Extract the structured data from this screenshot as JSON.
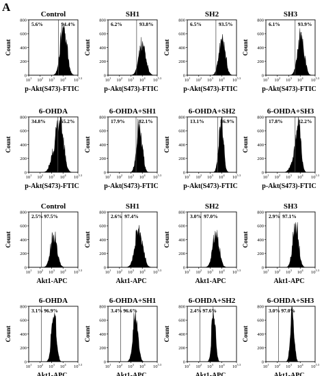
{
  "figure": {
    "panel_label": "A"
  },
  "chart_data": [
    {
      "type": "histogram",
      "title": "Control",
      "xlabel": "p-Akt(S473)-FTIC",
      "ylabel": "Count",
      "yticks": [
        "0",
        "200",
        "400",
        "600",
        "800"
      ],
      "ylim": [
        0,
        800
      ],
      "xticks": [
        "10^1",
        "10^2",
        "10^3",
        "10^4",
        "10^5.3"
      ],
      "xlim_log10": [
        1,
        5.3
      ],
      "gate_log10": 3.6,
      "left_pct": "5.6%",
      "right_pct": "94.4%",
      "distribution": {
        "peak_log10": 4.05,
        "spread": 0.28,
        "peak_count": 660
      }
    },
    {
      "type": "histogram",
      "title": "SH1",
      "xlabel": "p-Akt(S473)-FTIC",
      "ylabel": "Count",
      "yticks": [
        "0",
        "200",
        "400",
        "600",
        "800"
      ],
      "ylim": [
        0,
        800
      ],
      "xticks": [
        "10^1",
        "10^2",
        "10^3",
        "10^4",
        "10^5.3"
      ],
      "xlim_log10": [
        1,
        5.3
      ],
      "gate_log10": 3.5,
      "left_pct": "6.2%",
      "right_pct": "93.8%",
      "distribution": {
        "peak_log10": 4.0,
        "spread": 0.3,
        "peak_count": 420
      }
    },
    {
      "type": "histogram",
      "title": "SH2",
      "xlabel": "p-Akt(S473)-FTIC",
      "ylabel": "Count",
      "yticks": [
        "0",
        "200",
        "400",
        "600",
        "800"
      ],
      "ylim": [
        0,
        800
      ],
      "xticks": [
        "10^1",
        "10^2",
        "10^3",
        "10^4",
        "10^5.3"
      ],
      "xlim_log10": [
        1,
        5.3
      ],
      "gate_log10": 3.5,
      "left_pct": "6.5%",
      "right_pct": "93.5%",
      "distribution": {
        "peak_log10": 4.05,
        "spread": 0.27,
        "peak_count": 520
      }
    },
    {
      "type": "histogram",
      "title": "SH3",
      "xlabel": "p-Akt(S473)-FTIC",
      "ylabel": "Count",
      "yticks": [
        "0",
        "200",
        "400",
        "600",
        "800"
      ],
      "ylim": [
        0,
        800
      ],
      "xticks": [
        "10^1",
        "10^2",
        "10^3",
        "10^4",
        "10^5.3"
      ],
      "xlim_log10": [
        1,
        5.3
      ],
      "gate_log10": 3.55,
      "left_pct": "6.1%",
      "right_pct": "93.9%",
      "distribution": {
        "peak_log10": 4.05,
        "spread": 0.28,
        "peak_count": 560
      }
    },
    {
      "type": "histogram",
      "title": "6-OHDA",
      "xlabel": "p-Akt(S473)-FTIC",
      "ylabel": "Count",
      "yticks": [
        "0",
        "200",
        "400",
        "600",
        "800"
      ],
      "ylim": [
        0,
        800
      ],
      "xticks": [
        "10^1",
        "10^2",
        "10^3",
        "10^4",
        "10^5.3"
      ],
      "xlim_log10": [
        1,
        5.3
      ],
      "gate_log10": 3.55,
      "left_pct": "34.8%",
      "right_pct": "65.2%",
      "distribution": {
        "peak_log10": 3.75,
        "spread": 0.3,
        "peak_count": 700,
        "shoulder_log10": 3.2,
        "shoulder_count": 220
      }
    },
    {
      "type": "histogram",
      "title": "6-OHDA+SH1",
      "xlabel": "p-Akt(S473)-FTIC",
      "ylabel": "Count",
      "yticks": [
        "0",
        "200",
        "400",
        "600",
        "800"
      ],
      "ylim": [
        0,
        800
      ],
      "xticks": [
        "10^1",
        "10^2",
        "10^3",
        "10^4",
        "10^5.3"
      ],
      "xlim_log10": [
        1,
        5.3
      ],
      "gate_log10": 3.45,
      "left_pct": "17.9%",
      "right_pct": "82.1%",
      "distribution": {
        "peak_log10": 3.75,
        "spread": 0.24,
        "peak_count": 650
      }
    },
    {
      "type": "histogram",
      "title": "6-OHDA+SH2",
      "xlabel": "p-Akt(S473)-FTIC",
      "ylabel": "Count",
      "yticks": [
        "0",
        "200",
        "400",
        "600",
        "800"
      ],
      "ylim": [
        0,
        800
      ],
      "xticks": [
        "10^1",
        "10^2",
        "10^3",
        "10^4",
        "10^5.3"
      ],
      "xlim_log10": [
        1,
        5.3
      ],
      "gate_log10": 3.65,
      "left_pct": "13.1%",
      "right_pct": "86.9%",
      "distribution": {
        "peak_log10": 3.95,
        "spread": 0.2,
        "peak_count": 720
      }
    },
    {
      "type": "histogram",
      "title": "6-OHDA+SH3",
      "xlabel": "p-Akt(S473)-FTIC",
      "ylabel": "Count",
      "yticks": [
        "0",
        "200",
        "400",
        "600",
        "800"
      ],
      "ylim": [
        0,
        800
      ],
      "xticks": [
        "10^1",
        "10^2",
        "10^3",
        "10^4",
        "10^5.3"
      ],
      "xlim_log10": [
        1,
        5.3
      ],
      "gate_log10": 3.55,
      "left_pct": "17.8%",
      "right_pct": "82.2%",
      "distribution": {
        "peak_log10": 3.85,
        "spread": 0.2,
        "peak_count": 700,
        "shoulder_log10": 3.5,
        "shoulder_count": 180
      }
    },
    {
      "type": "histogram",
      "title": "Control",
      "xlabel": "Akt1-APC",
      "ylabel": "Count",
      "yticks": [
        "0",
        "200",
        "400",
        "600",
        "800"
      ],
      "ylim": [
        0,
        800
      ],
      "xticks": [
        "10^1",
        "10^2",
        "10^3",
        "10^4",
        "10^5.3"
      ],
      "xlim_log10": [
        1,
        5.3
      ],
      "gate_log10": 2.1,
      "left_pct": "2.5%",
      "right_pct": "97.5%",
      "distribution": {
        "peak_log10": 3.2,
        "spread": 0.28,
        "peak_count": 420
      }
    },
    {
      "type": "histogram",
      "title": "SH1",
      "xlabel": "Akt1-APC",
      "ylabel": "Count",
      "yticks": [
        "0",
        "200",
        "400",
        "600",
        "800"
      ],
      "ylim": [
        0,
        800
      ],
      "xticks": [
        "10^1",
        "10^2",
        "10^3",
        "10^4",
        "10^5.3"
      ],
      "xlim_log10": [
        1,
        5.3
      ],
      "gate_log10": 2.2,
      "left_pct": "2.6%",
      "right_pct": "97.4%",
      "distribution": {
        "peak_log10": 3.7,
        "spread": 0.33,
        "peak_count": 520
      }
    },
    {
      "type": "histogram",
      "title": "SH2",
      "xlabel": "Akt1-APC",
      "ylabel": "Count",
      "yticks": [
        "0",
        "200",
        "400",
        "600",
        "800"
      ],
      "ylim": [
        0,
        800
      ],
      "xticks": [
        "10^1",
        "10^2",
        "10^3",
        "10^4",
        "10^5.3"
      ],
      "xlim_log10": [
        1,
        5.3
      ],
      "gate_log10": 2.2,
      "left_pct": "3.0%",
      "right_pct": "97.0%",
      "distribution": {
        "peak_log10": 3.5,
        "spread": 0.28,
        "peak_count": 470
      }
    },
    {
      "type": "histogram",
      "title": "SH3",
      "xlabel": "Akt1-APC",
      "ylabel": "Count",
      "yticks": [
        "0",
        "200",
        "400",
        "600",
        "800"
      ],
      "ylim": [
        0,
        800
      ],
      "xticks": [
        "10^1",
        "10^2",
        "10^3",
        "10^4",
        "10^5.3"
      ],
      "xlim_log10": [
        1,
        5.3
      ],
      "gate_log10": 2.2,
      "left_pct": "2.9%",
      "right_pct": "97.1%",
      "distribution": {
        "peak_log10": 3.6,
        "spread": 0.25,
        "peak_count": 560
      }
    },
    {
      "type": "histogram",
      "title": "6-OHDA",
      "xlabel": "Akt1-APC",
      "ylabel": "Count",
      "yticks": [
        "0",
        "200",
        "400",
        "600",
        "800"
      ],
      "ylim": [
        0,
        800
      ],
      "xticks": [
        "10^1",
        "10^2",
        "10^3",
        "10^4",
        "10^5.3"
      ],
      "xlim_log10": [
        1,
        5.3
      ],
      "gate_log10": 2.1,
      "left_pct": "3.1%",
      "right_pct": "96.9%",
      "distribution": {
        "peak_log10": 3.2,
        "spread": 0.2,
        "peak_count": 690
      }
    },
    {
      "type": "histogram",
      "title": "6-OHDA+SH1",
      "xlabel": "Akt1-APC",
      "ylabel": "Count",
      "yticks": [
        "0",
        "200",
        "400",
        "600",
        "800"
      ],
      "ylim": [
        0,
        800
      ],
      "xticks": [
        "10^1",
        "10^2",
        "10^3",
        "10^4",
        "10^5.3"
      ],
      "xlim_log10": [
        1,
        5.3
      ],
      "gate_log10": 2.1,
      "left_pct": "3.4%",
      "right_pct": "96.6%",
      "distribution": {
        "peak_log10": 3.4,
        "spread": 0.22,
        "peak_count": 640
      }
    },
    {
      "type": "histogram",
      "title": "6-OHDA+SH2",
      "xlabel": "Akt1-APC",
      "ylabel": "Count",
      "yticks": [
        "0",
        "200",
        "400",
        "600",
        "800"
      ],
      "ylim": [
        0,
        800
      ],
      "xticks": [
        "10^1",
        "10^2",
        "10^3",
        "10^4",
        "10^5.3"
      ],
      "xlim_log10": [
        1,
        5.3
      ],
      "gate_log10": 2.1,
      "left_pct": "2.4%",
      "right_pct": "97.6%",
      "distribution": {
        "peak_log10": 3.3,
        "spread": 0.16,
        "peak_count": 730
      }
    },
    {
      "type": "histogram",
      "title": "6-OHDA+SH3",
      "xlabel": "Akt1-APC",
      "ylabel": "Count",
      "yticks": [
        "0",
        "200",
        "400",
        "600",
        "800"
      ],
      "ylim": [
        0,
        800
      ],
      "xticks": [
        "10^1",
        "10^2",
        "10^3",
        "10^4",
        "10^5.3"
      ],
      "xlim_log10": [
        1,
        5.3
      ],
      "gate_log10": 2.1,
      "left_pct": "3.0%",
      "right_pct": "97.0%",
      "distribution": {
        "peak_log10": 3.3,
        "spread": 0.16,
        "peak_count": 720
      }
    }
  ]
}
